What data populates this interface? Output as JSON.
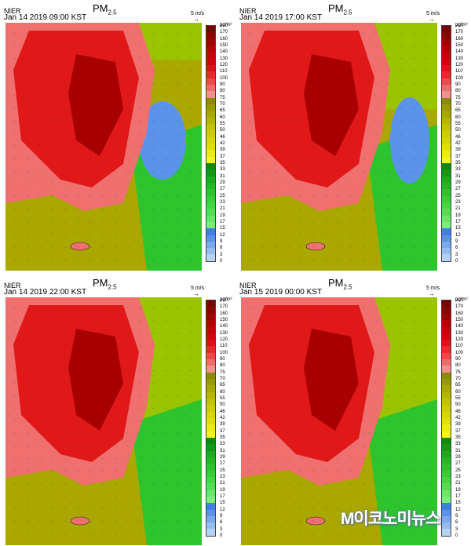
{
  "panels": [
    {
      "source": "NIER",
      "title": "PM",
      "title_sub": "2.5",
      "timestamp": "Jan 14 2019 09:00 KST",
      "wind_scale": "5 m/s",
      "unit": "µg/m³"
    },
    {
      "source": "NIER",
      "title": "PM",
      "title_sub": "2.5",
      "timestamp": "Jan 14 2019 17:00 KST",
      "wind_scale": "5 m/s",
      "unit": "µg/m³"
    },
    {
      "source": "NIER",
      "title": "PM",
      "title_sub": "2.5",
      "timestamp": "Jan 14 2019 22:00 KST",
      "wind_scale": "5 m/s",
      "unit": "µg/m³"
    },
    {
      "source": "NIER",
      "title": "PM",
      "title_sub": "2.5",
      "timestamp": "Jan 15 2019 00:00 KST",
      "wind_scale": "5 m/s",
      "unit": "µg/m³"
    }
  ],
  "colorbar": {
    "labels": [
      "200",
      "170",
      "160",
      "150",
      "140",
      "130",
      "120",
      "110",
      "100",
      "90",
      "80",
      "75",
      "70",
      "65",
      "60",
      "55",
      "50",
      "46",
      "42",
      "39",
      "37",
      "35",
      "33",
      "31",
      "29",
      "27",
      "25",
      "23",
      "21",
      "19",
      "17",
      "15",
      "12",
      "9",
      "6",
      "3",
      "0"
    ],
    "colors": [
      "#7a0000",
      "#8c0000",
      "#a10000",
      "#b30000",
      "#c40008",
      "#d4000f",
      "#e0101a",
      "#ea2a2a",
      "#f04848",
      "#f46a6a",
      "#f58e8e",
      "#8b8b00",
      "#9a9a00",
      "#a8a800",
      "#b5b500",
      "#c2c200",
      "#cccc00",
      "#d6d600",
      "#e0e000",
      "#ebeb10",
      "#f4f41a",
      "#0b8a0b",
      "#129a12",
      "#1aaa1a",
      "#22b822",
      "#2cc42c",
      "#36cf36",
      "#42d842",
      "#52e052",
      "#66e866",
      "#7aee7a",
      "#3f7fe6",
      "#5b93ea",
      "#78a8ee",
      "#95bdf2",
      "#b5d2f6"
    ]
  },
  "watermark": "M이코노미뉴스"
}
